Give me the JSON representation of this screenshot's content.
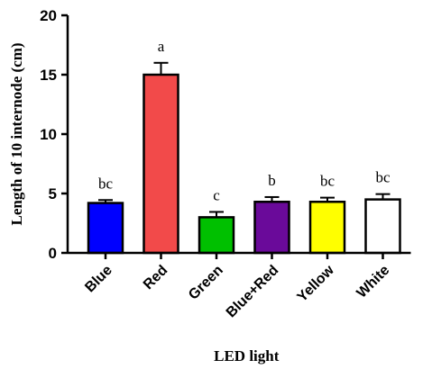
{
  "chart_data": {
    "type": "bar",
    "xlabel": "LED light",
    "ylabel": "Length of 10 internode (cm)",
    "ylim": [
      0,
      20
    ],
    "yticks": [
      0,
      5,
      10,
      15,
      20
    ],
    "grid": false,
    "categories": [
      "Blue",
      "Red",
      "Green",
      "Blue+Red",
      "Yellow",
      "White"
    ],
    "values": [
      4.2,
      15.0,
      3.0,
      4.3,
      4.3,
      4.5
    ],
    "errors": [
      0.25,
      1.0,
      0.45,
      0.4,
      0.35,
      0.45
    ],
    "significance_labels": [
      "bc",
      "a",
      "c",
      "b",
      "bc",
      "bc"
    ],
    "colors": [
      "#0000ff",
      "#f24a4a",
      "#00c000",
      "#6a0a9a",
      "#ffff00",
      "#ffffff"
    ]
  }
}
